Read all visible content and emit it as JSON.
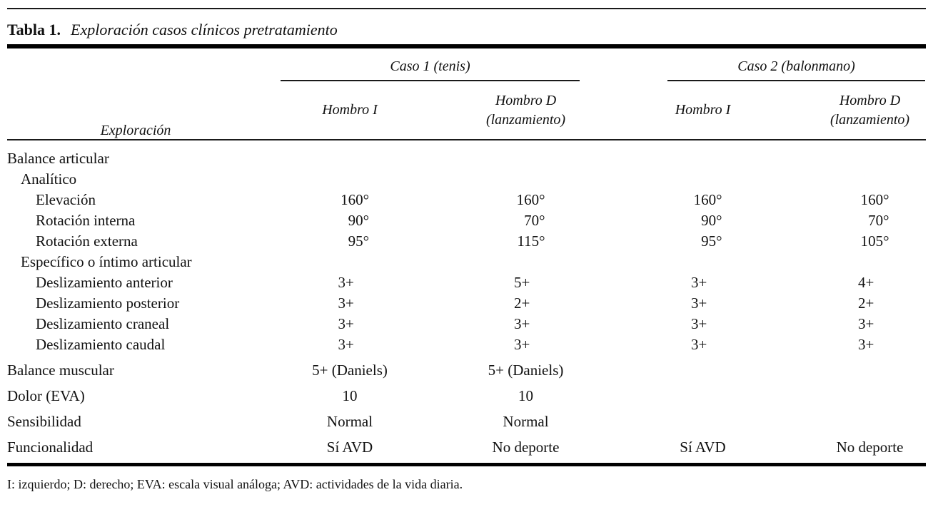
{
  "table": {
    "label": "Tabla 1.",
    "title": "Exploración casos clínicos pretratamiento",
    "col_header": "Exploración",
    "groups": [
      {
        "label": "Caso 1 (tenis)"
      },
      {
        "label": "Caso 2 (balonmano)"
      }
    ],
    "columns": [
      {
        "line1": "Hombro I",
        "line2": ""
      },
      {
        "line1": "Hombro D",
        "line2": "(lanzamiento)"
      },
      {
        "line1": "Hombro I",
        "line2": ""
      },
      {
        "line1": "Hombro D",
        "line2": "(lanzamiento)"
      }
    ],
    "rows": [
      {
        "label": "Balance articular",
        "indent": 0,
        "cells": [
          "",
          "",
          "",
          ""
        ]
      },
      {
        "label": "Analítico",
        "indent": 1,
        "cells": [
          "",
          "",
          "",
          ""
        ]
      },
      {
        "label": "Elevación",
        "indent": 2,
        "cells": [
          "160°",
          "160°",
          "160°",
          "160°"
        ]
      },
      {
        "label": "Rotación interna",
        "indent": 2,
        "cells": [
          "90°",
          "70°",
          "90°",
          "70°"
        ]
      },
      {
        "label": "Rotación externa",
        "indent": 2,
        "cells": [
          "95°",
          "115°",
          "95°",
          "105°"
        ]
      },
      {
        "label": "Específico o íntimo articular",
        "indent": 1,
        "cells": [
          "",
          "",
          "",
          ""
        ]
      },
      {
        "label": "Deslizamiento anterior",
        "indent": 2,
        "cells": [
          "3+",
          "5+",
          "3+",
          "4+"
        ]
      },
      {
        "label": "Deslizamiento posterior",
        "indent": 2,
        "cells": [
          "3+",
          "2+",
          "3+",
          "2+"
        ]
      },
      {
        "label": "Deslizamiento craneal",
        "indent": 2,
        "cells": [
          "3+",
          "3+",
          "3+",
          "3+"
        ]
      },
      {
        "label": "Deslizamiento caudal",
        "indent": 2,
        "cells": [
          "3+",
          "3+",
          "3+",
          "3+"
        ]
      },
      {
        "label": "Balance muscular",
        "indent": 0,
        "cells": [
          "5+ (Daniels)",
          "5+ (Daniels)",
          "",
          ""
        ]
      },
      {
        "label": "Dolor (EVA)",
        "indent": 0,
        "cells": [
          "10",
          "10",
          "",
          ""
        ]
      },
      {
        "label": "Sensibilidad",
        "indent": 0,
        "cells": [
          "Normal",
          "Normal",
          "",
          ""
        ]
      },
      {
        "label": "Funcionalidad",
        "indent": 0,
        "cells": [
          "Sí AVD",
          "No deporte",
          "Sí AVD",
          "No deporte"
        ]
      }
    ],
    "footnote": "I: izquierdo; D: derecho; EVA: escala visual análoga; AVD: actividades de la vida diaria."
  }
}
